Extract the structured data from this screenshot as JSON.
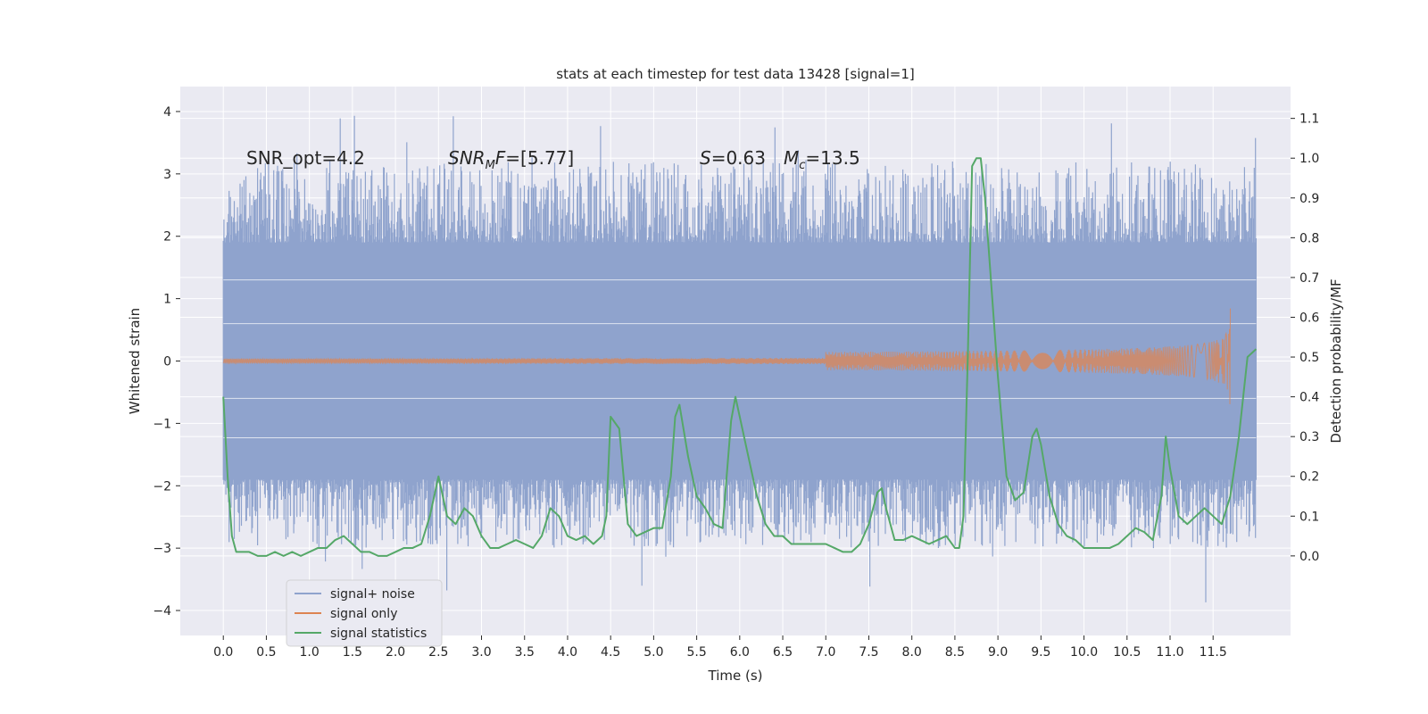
{
  "chart_data": {
    "type": "line",
    "title": "stats at each timestep for test data 13428 [signal=1]",
    "xlabel": "Time (s)",
    "ylabel": "Whitened strain",
    "y2label": "Detection probability/MF",
    "xlim": [
      -0.5,
      12.4
    ],
    "ylim": [
      -4.4,
      4.4
    ],
    "y2lim": [
      -0.2,
      1.18
    ],
    "xticks": [
      "0.0",
      "0.5",
      "1.0",
      "1.5",
      "2.0",
      "2.5",
      "3.0",
      "3.5",
      "4.0",
      "4.5",
      "5.0",
      "5.5",
      "6.0",
      "6.5",
      "7.0",
      "7.5",
      "8.0",
      "8.5",
      "9.0",
      "9.5",
      "10.0",
      "10.5",
      "11.0",
      "11.5"
    ],
    "yticks": [
      "4",
      "3",
      "2",
      "1",
      "0",
      "−1",
      "−2",
      "−3",
      "−4"
    ],
    "y2ticks": [
      "1.1",
      "1.0",
      "0.9",
      "0.8",
      "0.7",
      "0.6",
      "0.5",
      "0.4",
      "0.3",
      "0.2",
      "0.1",
      "0.0"
    ],
    "grid": true,
    "legend_position": "lower-left",
    "annotations": {
      "snr_opt": "SNR_opt=4.2",
      "snr_mf_main": "SNR",
      "snr_mf_sub": "M",
      "snr_mf_tail": "F=[5.77]",
      "s_main": "S",
      "s_tail": "=0.63",
      "mc_main": "M",
      "mc_sub": "c",
      "mc_tail": "=13.5"
    },
    "colors": {
      "background": "#eaeaf2",
      "grid": "#ffffff",
      "noise": "#8fa3cd",
      "signal": "#dd8452",
      "statistics": "#55a868"
    },
    "series": [
      {
        "name": "signal+ noise",
        "kind": "noise-band",
        "x_range": [
          0.0,
          12.0
        ],
        "core_band": [
          -1.9,
          1.9
        ],
        "typical_extremes": [
          -3.0,
          3.2
        ],
        "max_value": 4.1,
        "min_value": -4.0
      },
      {
        "name": "signal only",
        "kind": "chirp",
        "x_range": [
          0.0,
          11.7
        ],
        "peak_amplitude": 0.85,
        "merger_time": 11.7
      },
      {
        "name": "signal statistics",
        "kind": "line",
        "axis": "right",
        "x": [
          0.0,
          0.05,
          0.1,
          0.15,
          0.2,
          0.3,
          0.4,
          0.5,
          0.6,
          0.7,
          0.8,
          0.9,
          1.0,
          1.1,
          1.2,
          1.3,
          1.4,
          1.5,
          1.6,
          1.7,
          1.8,
          1.9,
          2.0,
          2.1,
          2.2,
          2.3,
          2.4,
          2.5,
          2.6,
          2.7,
          2.8,
          2.9,
          3.0,
          3.1,
          3.2,
          3.3,
          3.4,
          3.5,
          3.6,
          3.7,
          3.8,
          3.9,
          4.0,
          4.1,
          4.2,
          4.3,
          4.4,
          4.45,
          4.5,
          4.6,
          4.7,
          4.8,
          4.9,
          5.0,
          5.1,
          5.2,
          5.25,
          5.3,
          5.4,
          5.5,
          5.6,
          5.7,
          5.8,
          5.9,
          5.95,
          6.0,
          6.1,
          6.2,
          6.3,
          6.4,
          6.5,
          6.6,
          6.7,
          6.8,
          6.9,
          7.0,
          7.1,
          7.2,
          7.3,
          7.4,
          7.5,
          7.6,
          7.65,
          7.7,
          7.8,
          7.9,
          8.0,
          8.1,
          8.2,
          8.3,
          8.4,
          8.5,
          8.55,
          8.6,
          8.65,
          8.7,
          8.75,
          8.8,
          8.85,
          8.9,
          9.0,
          9.1,
          9.2,
          9.3,
          9.4,
          9.45,
          9.5,
          9.6,
          9.7,
          9.8,
          9.9,
          10.0,
          10.1,
          10.2,
          10.3,
          10.4,
          10.5,
          10.6,
          10.7,
          10.8,
          10.9,
          10.95,
          11.0,
          11.1,
          11.2,
          11.3,
          11.4,
          11.5,
          11.6,
          11.7,
          11.8,
          11.9,
          12.0
        ],
        "y": [
          0.4,
          0.2,
          0.05,
          0.01,
          0.01,
          0.01,
          0.0,
          0.0,
          0.01,
          0.0,
          0.01,
          0.0,
          0.01,
          0.02,
          0.02,
          0.04,
          0.05,
          0.03,
          0.01,
          0.01,
          0.0,
          0.0,
          0.01,
          0.02,
          0.02,
          0.03,
          0.1,
          0.2,
          0.1,
          0.08,
          0.12,
          0.1,
          0.05,
          0.02,
          0.02,
          0.03,
          0.04,
          0.03,
          0.02,
          0.05,
          0.12,
          0.1,
          0.05,
          0.04,
          0.05,
          0.03,
          0.05,
          0.1,
          0.35,
          0.32,
          0.08,
          0.05,
          0.06,
          0.07,
          0.07,
          0.2,
          0.35,
          0.38,
          0.25,
          0.15,
          0.12,
          0.08,
          0.07,
          0.34,
          0.4,
          0.35,
          0.25,
          0.15,
          0.08,
          0.05,
          0.05,
          0.03,
          0.03,
          0.03,
          0.03,
          0.03,
          0.02,
          0.01,
          0.01,
          0.03,
          0.08,
          0.16,
          0.17,
          0.12,
          0.04,
          0.04,
          0.05,
          0.04,
          0.03,
          0.04,
          0.05,
          0.02,
          0.02,
          0.1,
          0.5,
          0.98,
          1.0,
          1.0,
          0.9,
          0.75,
          0.45,
          0.2,
          0.14,
          0.16,
          0.3,
          0.32,
          0.28,
          0.15,
          0.08,
          0.05,
          0.04,
          0.02,
          0.02,
          0.02,
          0.02,
          0.03,
          0.05,
          0.07,
          0.06,
          0.04,
          0.15,
          0.3,
          0.22,
          0.1,
          0.08,
          0.1,
          0.12,
          0.1,
          0.08,
          0.15,
          0.3,
          0.5,
          0.52
        ]
      }
    ]
  }
}
